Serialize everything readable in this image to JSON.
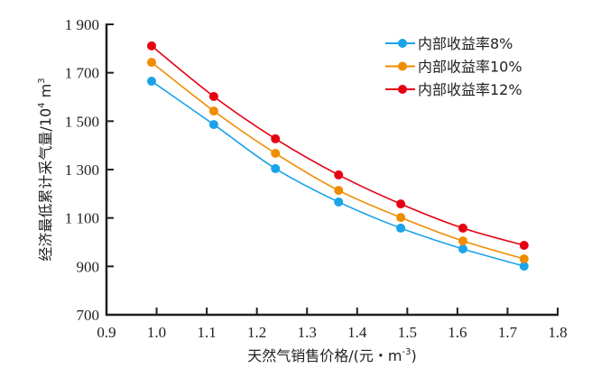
{
  "chart_data": {
    "type": "line",
    "title": "",
    "xlabel": "天然气销售价格/(元・m⁻³)",
    "xlabel_parts": {
      "main": "天然气销售价格/(元・m",
      "sup": "-3",
      "tail": ")"
    },
    "ylabel": "经济最低累计采气量/10⁴ m³",
    "ylabel_parts": {
      "main": "经济最低累计采气量/10",
      "sup1": "4",
      "mid": " m",
      "sup2": "3"
    },
    "xlim": [
      0.9,
      1.8
    ],
    "ylim": [
      700,
      1900
    ],
    "xticks": [
      0.9,
      1.0,
      1.1,
      1.2,
      1.3,
      1.4,
      1.5,
      1.6,
      1.7,
      1.8
    ],
    "xtick_labels": [
      "0.9",
      "1.0",
      "1.1",
      "1.2",
      "1.3",
      "1.4",
      "1.5",
      "1.6",
      "1.7",
      "1.8"
    ],
    "yticks": [
      700,
      900,
      1100,
      1300,
      1500,
      1700,
      1900
    ],
    "ytick_labels": [
      "700",
      "900",
      "1 100",
      "1 300",
      "1 500",
      "1 700",
      "1 900"
    ],
    "grid": false,
    "legend_position": "top-right",
    "x": [
      0.99,
      1.114,
      1.237,
      1.363,
      1.487,
      1.611,
      1.733
    ],
    "series": [
      {
        "name": "内部收益率8%",
        "color": "#1aa3e8",
        "values": [
          1665,
          1486,
          1304,
          1166,
          1058,
          972,
          901
        ]
      },
      {
        "name": "内部收益率10%",
        "color": "#f08c00",
        "values": [
          1743,
          1542,
          1367,
          1214,
          1102,
          1005,
          931
        ]
      },
      {
        "name": "内部收益率12%",
        "color": "#e60012",
        "values": [
          1811,
          1602,
          1427,
          1278,
          1158,
          1058,
          987
        ]
      }
    ]
  }
}
